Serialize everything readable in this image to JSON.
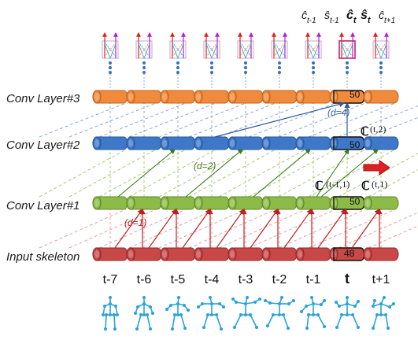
{
  "layers": [
    {
      "label": "Conv Layer#3",
      "color": "#f08a3c",
      "dark": "#c0641e"
    },
    {
      "label": "Conv Layer#2",
      "color": "#3f78c8",
      "dark": "#275a9e"
    },
    {
      "label": "Conv Layer#1",
      "color": "#8dbb4a",
      "dark": "#5f8a26"
    },
    {
      "label": "Input skeleton",
      "color": "#c84848",
      "dark": "#962828"
    }
  ],
  "timesteps": [
    "t-7",
    "t-6",
    "t-5",
    "t-4",
    "t-3",
    "t-2",
    "t-1",
    "t",
    "t+1"
  ],
  "highlight_index": 7,
  "channels": {
    "top": "50",
    "l2": "50",
    "l1": "50",
    "input": "48"
  },
  "dilations": {
    "d1": "(d=1)",
    "d2": "(d=2)",
    "d4": "(d=4)"
  },
  "dilation_colors": {
    "d1": "#c02020",
    "d2": "#3a7a1a",
    "d4": "#3a5f9e"
  },
  "annotations": {
    "c_t2_sym": "ℂ",
    "c_t2_sub": "(t,2)",
    "c_t11_sym": "ℂ",
    "c_t11_sub": "(t-1,1)",
    "c_t1_sym": "ℂ",
    "c_t1_sub": "(t,1)"
  },
  "outputs": [
    {
      "hat": "ĉ",
      "sub": "t-1"
    },
    {
      "hat": "ŝ",
      "sub": "t-1"
    },
    {
      "hat": "ĉ",
      "sub": "t",
      "bold": true
    },
    {
      "hat": "ŝ",
      "sub": "t",
      "bold": true
    },
    {
      "hat": "ĉ",
      "sub": "t+1"
    }
  ],
  "arrow_color": "#e02020",
  "skeleton_color": "#29a3d9"
}
